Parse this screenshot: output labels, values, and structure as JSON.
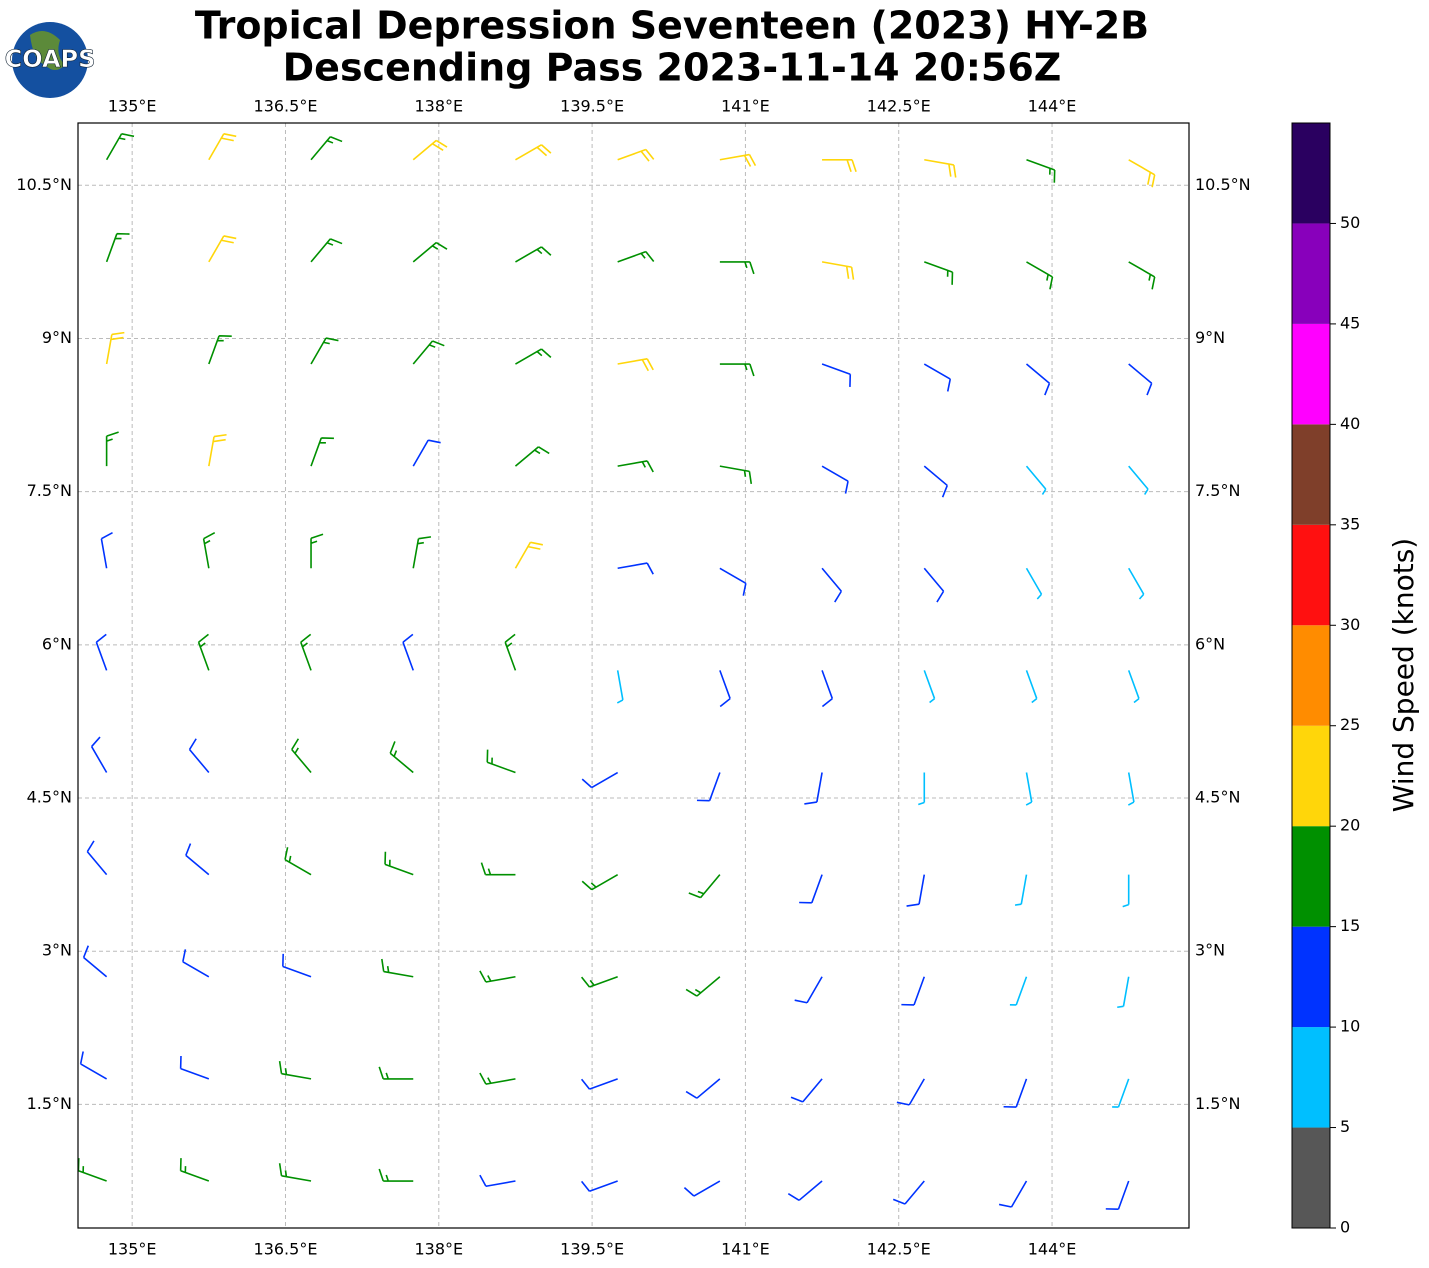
{
  "logo_text": "COAPS",
  "chart_data": {
    "type": "barbs",
    "title": "Tropical Depression Seventeen (2023) HY-2B",
    "subtitle": "Descending Pass 2023-11-14 20:56Z",
    "xlim": [
      134.47,
      145.34
    ],
    "ylim": [
      0.29,
      11.11
    ],
    "xticks": [
      {
        "value": 135,
        "label": "135°E"
      },
      {
        "value": 136.5,
        "label": "136.5°E"
      },
      {
        "value": 138,
        "label": "138°E"
      },
      {
        "value": 139.5,
        "label": "139.5°E"
      },
      {
        "value": 141,
        "label": "141°E"
      },
      {
        "value": 142.5,
        "label": "142.5°E"
      },
      {
        "value": 144,
        "label": "144°E"
      }
    ],
    "yticks": [
      {
        "value": 1.5,
        "label": "1.5°N"
      },
      {
        "value": 3,
        "label": "3°N"
      },
      {
        "value": 4.5,
        "label": "4.5°N"
      },
      {
        "value": 6,
        "label": "6°N"
      },
      {
        "value": 7.5,
        "label": "7.5°N"
      },
      {
        "value": 9,
        "label": "9°N"
      },
      {
        "value": 10.5,
        "label": "10.5°N"
      }
    ],
    "grid": true,
    "barb_lons": [
      134.75,
      135.75,
      136.75,
      137.75,
      138.75,
      139.75,
      140.75,
      141.75,
      142.75,
      143.75,
      144.75
    ],
    "barb_lats": [
      10.75,
      9.75,
      8.75,
      7.75,
      6.75,
      5.75,
      4.75,
      3.75,
      2.75,
      1.75,
      0.75
    ],
    "speed": [
      [
        17,
        22,
        18,
        22,
        22,
        22,
        24,
        22,
        21,
        18,
        21
      ],
      [
        18,
        23,
        17,
        18,
        19,
        17,
        18,
        21,
        17,
        16,
        16
      ],
      [
        21,
        19,
        17,
        18,
        19,
        21,
        17,
        14,
        12,
        12,
        13
      ],
      [
        16,
        21,
        17,
        14,
        16,
        18,
        17,
        13,
        11,
        8,
        8
      ],
      [
        13,
        17,
        16,
        17,
        21,
        14,
        12,
        12,
        11,
        9,
        8
      ],
      [
        12,
        16,
        16,
        13,
        16,
        8,
        11,
        12,
        9,
        8,
        7
      ],
      [
        13,
        14,
        16,
        17,
        18,
        14,
        13,
        12,
        9,
        8,
        7
      ],
      [
        12,
        14,
        16,
        17,
        18,
        17,
        16,
        13,
        12,
        9,
        8
      ],
      [
        12,
        12,
        14,
        16,
        17,
        17,
        16,
        14,
        13,
        9,
        8
      ],
      [
        12,
        13,
        16,
        17,
        16,
        14,
        14,
        13,
        12,
        11,
        9
      ],
      [
        16,
        17,
        17,
        16,
        14,
        14,
        13,
        14,
        12,
        12,
        12
      ]
    ],
    "direction": [
      [
        30,
        30,
        40,
        50,
        60,
        70,
        80,
        90,
        100,
        110,
        120
      ],
      [
        20,
        30,
        40,
        50,
        60,
        70,
        90,
        100,
        110,
        120,
        120
      ],
      [
        10,
        20,
        30,
        40,
        60,
        80,
        90,
        110,
        120,
        130,
        130
      ],
      [
        0,
        10,
        20,
        30,
        50,
        80,
        100,
        120,
        130,
        140,
        140
      ],
      [
        350,
        350,
        0,
        10,
        30,
        80,
        120,
        140,
        140,
        150,
        150
      ],
      [
        340,
        340,
        340,
        340,
        340,
        170,
        160,
        160,
        160,
        160,
        160
      ],
      [
        330,
        320,
        320,
        310,
        290,
        240,
        200,
        190,
        180,
        170,
        170
      ],
      [
        320,
        310,
        300,
        290,
        270,
        240,
        220,
        200,
        190,
        190,
        180
      ],
      [
        310,
        300,
        290,
        280,
        260,
        250,
        230,
        210,
        200,
        200,
        190
      ],
      [
        300,
        290,
        280,
        270,
        260,
        250,
        230,
        220,
        210,
        200,
        200
      ],
      [
        290,
        290,
        280,
        270,
        260,
        250,
        240,
        230,
        220,
        210,
        200
      ]
    ],
    "colorbar_label": "Wind Speed (knots)",
    "levels": [
      0,
      5,
      10,
      15,
      20,
      25,
      30,
      35,
      40,
      45,
      50,
      55
    ],
    "level_colors": [
      "#575757",
      "#00bfff",
      "#0033ff",
      "#009000",
      "#ffd60a",
      "#ff8c00",
      "#ff1010",
      "#7f3f2a",
      "#ff00ff",
      "#8800bb",
      "#2a0060"
    ],
    "cbar_ticks": [
      0,
      5,
      10,
      15,
      20,
      25,
      30,
      35,
      40,
      45,
      50
    ]
  }
}
